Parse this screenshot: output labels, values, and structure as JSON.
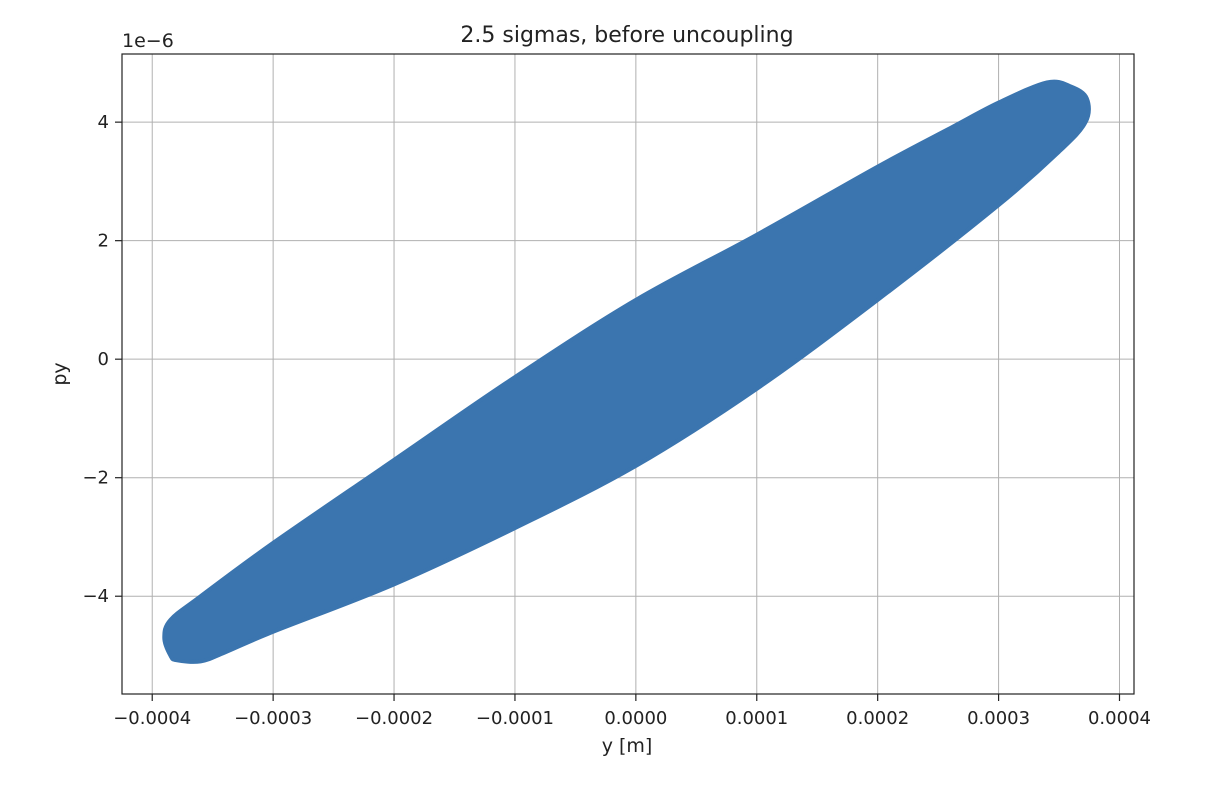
{
  "chart_data": {
    "type": "scatter",
    "title": "2.5 sigmas, before uncoupling",
    "xlabel": "y [m]",
    "ylabel": "py",
    "y_offset_label": "1e−6",
    "xlim": [
      -0.000425,
      0.000412
    ],
    "ylim": [
      -5.65e-06,
      5.15e-06
    ],
    "grid": true,
    "legend": "none",
    "color": "#3b75af",
    "x_ticks": [
      {
        "value": -0.0004,
        "label": "−0.0004"
      },
      {
        "value": -0.0003,
        "label": "−0.0003"
      },
      {
        "value": -0.0002,
        "label": "−0.0002"
      },
      {
        "value": -0.0001,
        "label": "−0.0001"
      },
      {
        "value": 0.0,
        "label": "0.0000"
      },
      {
        "value": 0.0001,
        "label": "0.0001"
      },
      {
        "value": 0.0002,
        "label": "0.0002"
      },
      {
        "value": 0.0003,
        "label": "0.0003"
      },
      {
        "value": 0.0004,
        "label": "0.0004"
      }
    ],
    "y_ticks": [
      {
        "value": -4e-06,
        "label": "−4"
      },
      {
        "value": -2e-06,
        "label": "−2"
      },
      {
        "value": 0,
        "label": "0"
      },
      {
        "value": 2e-06,
        "label": "2"
      },
      {
        "value": 4e-06,
        "label": "4"
      }
    ],
    "series": [
      {
        "shape": "filled-region",
        "outline": [
          [
            -0.000385,
            -5e-06
          ],
          [
            -0.00039,
            -4.7e-06
          ],
          [
            -0.000385,
            -4.4e-06
          ],
          [
            -0.00036,
            -4e-06
          ],
          [
            -0.0003,
            -3.1e-06
          ],
          [
            -0.0002,
            -1.7e-06
          ],
          [
            -0.0001,
            -3e-07
          ],
          [
            0.0,
            1e-06
          ],
          [
            0.0001,
            2.1e-06
          ],
          [
            0.0002,
            3.25e-06
          ],
          [
            0.00026,
            3.9e-06
          ],
          [
            0.0003,
            4.33e-06
          ],
          [
            0.00034,
            4.67e-06
          ],
          [
            0.00036,
            4.6e-06
          ],
          [
            0.000373,
            4.4e-06
          ],
          [
            0.000372,
            4e-06
          ],
          [
            0.00035,
            3.5e-06
          ],
          [
            0.0003,
            2.6e-06
          ],
          [
            0.0002,
            1e-06
          ],
          [
            0.0001,
            -5e-07
          ],
          [
            0.0,
            -1.8e-06
          ],
          [
            -0.0001,
            -2.85e-06
          ],
          [
            -0.0002,
            -3.8e-06
          ],
          [
            -0.0003,
            -4.6e-06
          ],
          [
            -0.00034,
            -4.95e-06
          ],
          [
            -0.00036,
            -5.1e-06
          ],
          [
            -0.00038,
            -5.08e-06
          ]
        ]
      }
    ]
  }
}
